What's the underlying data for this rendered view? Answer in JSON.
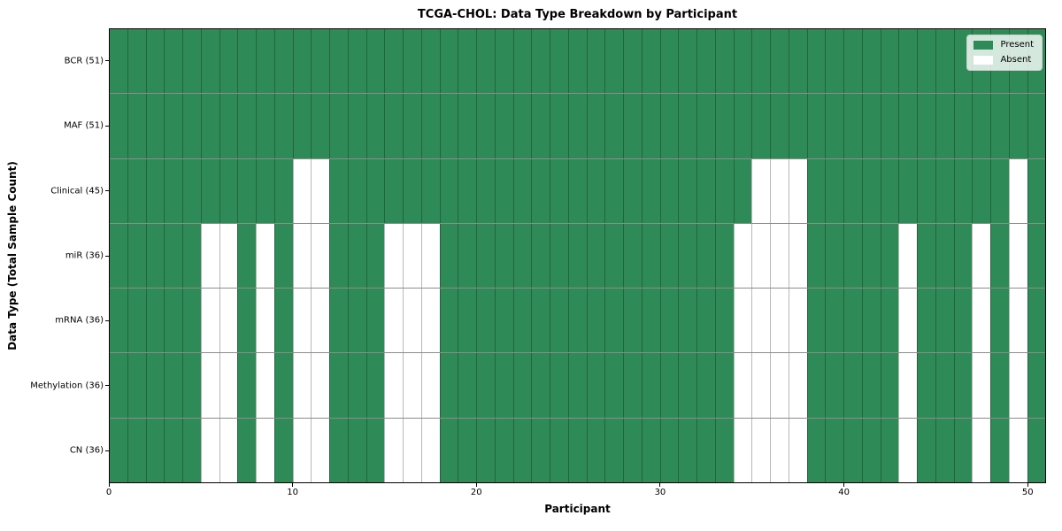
{
  "title": "TCGA-CHOL: Data Type Breakdown by Participant",
  "colors": {
    "present": "#2e8b57",
    "absent": "#ffffff",
    "cell_edge": "rgba(0,0,0,0.28)",
    "row_divider": "rgba(0,0,0,0.45)",
    "frame": "#000000"
  },
  "legend": {
    "items": [
      {
        "label": "Present",
        "color": "#2e8b57"
      },
      {
        "label": "Absent",
        "color": "#ffffff"
      }
    ],
    "position": "upper right"
  },
  "chart_data": {
    "type": "heatmap",
    "title": "TCGA-CHOL: Data Type Breakdown by Participant",
    "xlabel": "Participant",
    "ylabel": "Data Type (Total Sample Count)",
    "x_range": [
      0,
      51
    ],
    "x_ticks": [
      0,
      10,
      20,
      30,
      40,
      50
    ],
    "participant_count": 51,
    "grid": true,
    "legend_entries": [
      "Present",
      "Absent"
    ],
    "legend_position": "upper right",
    "y_tick_labels": [
      "BCR (51)",
      "MAF (51)",
      "Clinical (45)",
      "miR (36)",
      "mRNA (36)",
      "Methylation (36)",
      "CN (36)"
    ],
    "rows": [
      {
        "label": "BCR (51)",
        "data_type": "BCR",
        "present_count": 51,
        "absent_participants": []
      },
      {
        "label": "MAF (51)",
        "data_type": "MAF",
        "present_count": 51,
        "absent_participants": []
      },
      {
        "label": "Clinical (45)",
        "data_type": "Clinical",
        "present_count": 45,
        "absent_participants": [
          10,
          11,
          35,
          36,
          37,
          49
        ]
      },
      {
        "label": "miR (36)",
        "data_type": "miR",
        "present_count": 36,
        "absent_participants": [
          5,
          6,
          8,
          10,
          11,
          15,
          16,
          17,
          34,
          35,
          36,
          37,
          43,
          47,
          49
        ]
      },
      {
        "label": "mRNA (36)",
        "data_type": "mRNA",
        "present_count": 36,
        "absent_participants": [
          5,
          6,
          8,
          10,
          11,
          15,
          16,
          17,
          34,
          35,
          36,
          37,
          43,
          47,
          49
        ]
      },
      {
        "label": "Methylation (36)",
        "data_type": "Methylation",
        "present_count": 36,
        "absent_participants": [
          5,
          6,
          8,
          10,
          11,
          15,
          16,
          17,
          34,
          35,
          36,
          37,
          43,
          47,
          49
        ]
      },
      {
        "label": "CN (36)",
        "data_type": "CN",
        "present_count": 36,
        "absent_participants": [
          5,
          6,
          8,
          10,
          11,
          15,
          16,
          17,
          34,
          35,
          36,
          37,
          43,
          47,
          49
        ]
      }
    ]
  }
}
